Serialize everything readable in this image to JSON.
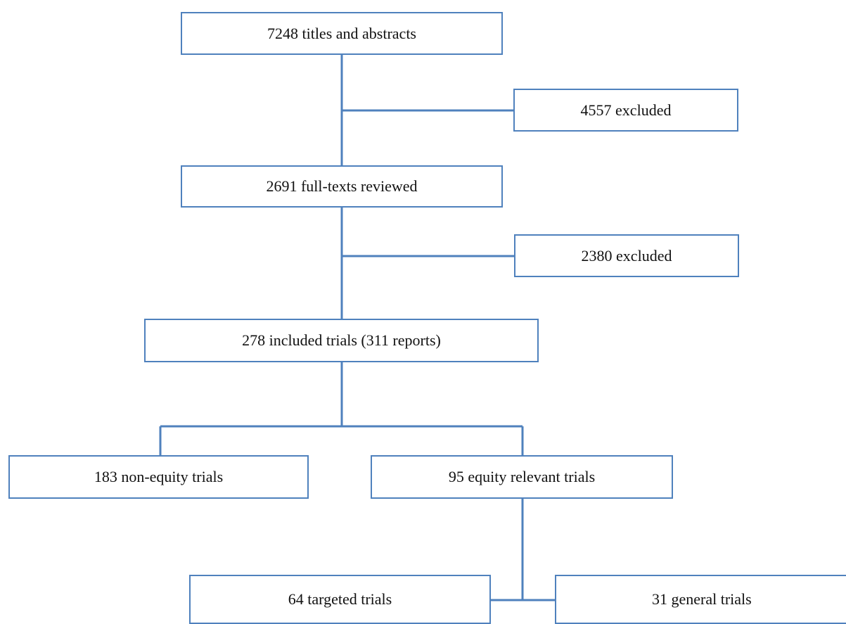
{
  "colors": {
    "box_border": "#4f81bd",
    "connector": "#4f81bd",
    "text": "#111111",
    "background": "#ffffff"
  },
  "flowchart": {
    "titles_abstracts": "7248 titles and abstracts",
    "excluded_first": "4557 excluded",
    "fulltexts_reviewed": "2691 full-texts reviewed",
    "excluded_second": "2380 excluded",
    "included_trials": "278 included trials (311 reports)",
    "non_equity_trials": "183 non-equity trials",
    "equity_relevant_trials": "95 equity relevant trials",
    "targeted_trials": "64 targeted trials",
    "general_trials": "31 general trials"
  }
}
